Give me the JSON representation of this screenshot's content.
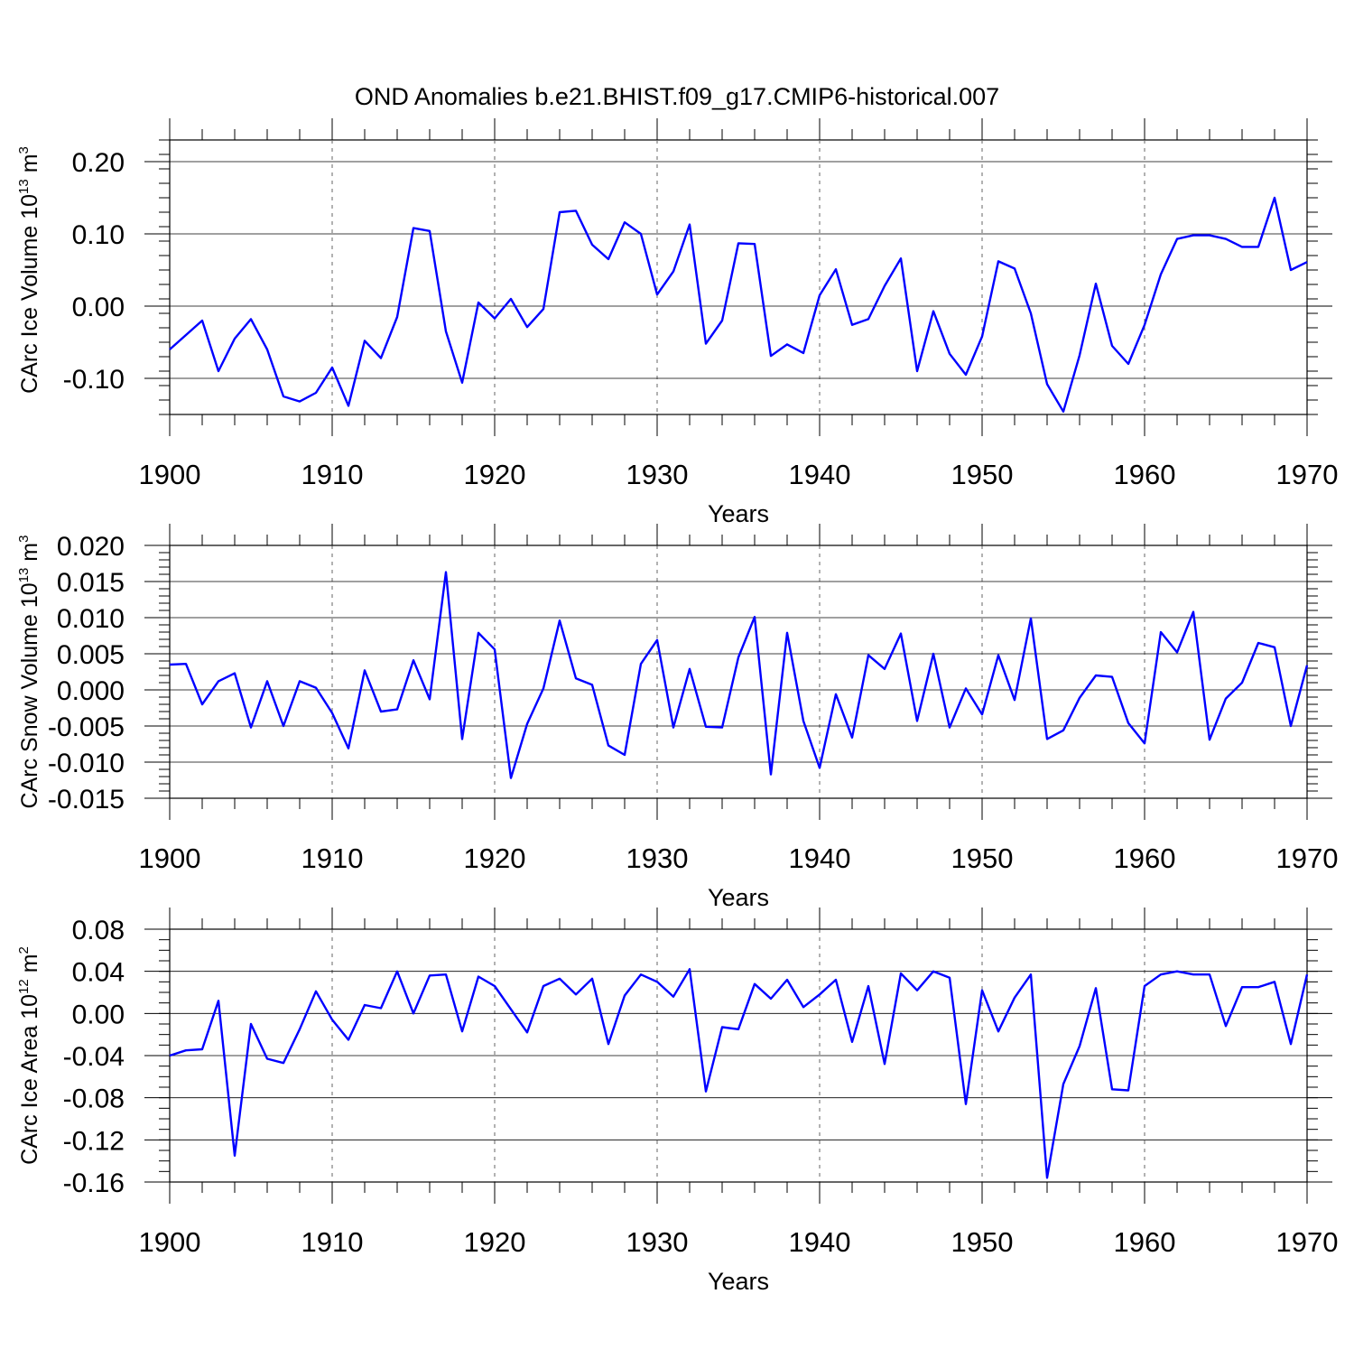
{
  "figure": {
    "title": "OND Anomalies b.e21.BHIST.f09_g17.CMIP6-historical.007",
    "line_color": "#0000ff"
  },
  "chart_data": [
    {
      "type": "line",
      "ylabel_main": "CArc Ice Volume 10",
      "ylabel_exp": "13",
      "ylabel_unit": " m",
      "ylabel_unit_exp": "3",
      "xlabel": "Years",
      "xlim": [
        1900,
        1970
      ],
      "ylim": [
        -0.15,
        0.23
      ],
      "yticks": [
        0.2,
        0.1,
        0.0,
        -0.1
      ],
      "ytick_labels": [
        "0.20",
        "0.10",
        "0.00",
        "-0.10"
      ],
      "yminor_step": 0.02,
      "xticks": [
        1900,
        1910,
        1920,
        1930,
        1940,
        1950,
        1960,
        1970
      ],
      "xtick_labels": [
        "1900",
        "1910",
        "1920",
        "1930",
        "1940",
        "1950",
        "1960",
        "1970"
      ],
      "series": [
        {
          "name": "CArc Ice Volume",
          "x_start": 1900,
          "values": [
            -0.06,
            -0.04,
            -0.02,
            -0.09,
            -0.045,
            -0.018,
            -0.06,
            -0.125,
            -0.132,
            -0.12,
            -0.085,
            -0.138,
            -0.048,
            -0.072,
            -0.015,
            0.108,
            0.104,
            -0.035,
            -0.106,
            0.005,
            -0.017,
            0.01,
            -0.029,
            -0.004,
            0.13,
            0.132,
            0.085,
            0.065,
            0.116,
            0.1,
            0.016,
            0.048,
            0.113,
            -0.052,
            -0.02,
            0.087,
            0.086,
            -0.069,
            -0.053,
            -0.065,
            0.015,
            0.051,
            -0.026,
            -0.018,
            0.028,
            0.066,
            -0.09,
            -0.007,
            -0.066,
            -0.095,
            -0.042,
            0.062,
            0.052,
            -0.01,
            -0.108,
            -0.146,
            -0.068,
            0.031,
            -0.055,
            -0.08,
            -0.026,
            0.044,
            0.093,
            0.098,
            0.098,
            0.093,
            0.082,
            0.082,
            0.15,
            0.05,
            0.061
          ]
        }
      ]
    },
    {
      "type": "line",
      "ylabel_main": "CArc Snow Volume 10",
      "ylabel_exp": "13",
      "ylabel_unit": " m",
      "ylabel_unit_exp": "3",
      "xlabel": "Years",
      "xlim": [
        1900,
        1970
      ],
      "ylim": [
        -0.015,
        0.02
      ],
      "yticks": [
        0.02,
        0.015,
        0.01,
        0.005,
        0.0,
        -0.005,
        -0.01,
        -0.015
      ],
      "ytick_labels": [
        "0.020",
        "0.015",
        "0.010",
        "0.005",
        "0.000",
        "-0.005",
        "-0.010",
        "-0.015"
      ],
      "yminor_step": 0.001,
      "xticks": [
        1900,
        1910,
        1920,
        1930,
        1940,
        1950,
        1960,
        1970
      ],
      "xtick_labels": [
        "1900",
        "1910",
        "1920",
        "1930",
        "1940",
        "1950",
        "1960",
        "1970"
      ],
      "series": [
        {
          "name": "CArc Snow Volume",
          "x_start": 1900,
          "values": [
            0.0035,
            0.0036,
            -0.002,
            0.0012,
            0.0023,
            -0.0052,
            0.0012,
            -0.005,
            0.0012,
            0.0003,
            -0.0032,
            -0.0081,
            0.0027,
            -0.003,
            -0.0027,
            0.0041,
            -0.0013,
            0.0163,
            -0.0068,
            0.0079,
            0.0056,
            -0.0122,
            -0.0047,
            0.0002,
            0.0096,
            0.0016,
            0.0007,
            -0.0077,
            -0.009,
            0.0036,
            0.0069,
            -0.0052,
            0.0029,
            -0.0051,
            -0.0052,
            0.0045,
            0.0101,
            -0.0117,
            0.0079,
            -0.0043,
            -0.0108,
            -0.0006,
            -0.0066,
            0.0048,
            0.0029,
            0.0078,
            -0.0043,
            0.005,
            -0.0052,
            0.0002,
            -0.0034,
            0.0048,
            -0.0014,
            0.0099,
            -0.0068,
            -0.0056,
            -0.0011,
            0.002,
            0.0018,
            -0.0046,
            -0.0074,
            0.008,
            0.0052,
            0.0108,
            -0.0069,
            -0.0012,
            0.001,
            0.0065,
            0.0059,
            -0.005,
            0.0034
          ]
        }
      ]
    },
    {
      "type": "line",
      "ylabel_main": "CArc Ice Area 10",
      "ylabel_exp": "12",
      "ylabel_unit": " m",
      "ylabel_unit_exp": "2",
      "xlabel": "Years",
      "xlim": [
        1900,
        1970
      ],
      "ylim": [
        -0.16,
        0.08
      ],
      "yticks": [
        0.08,
        0.04,
        0.0,
        -0.04,
        -0.08,
        -0.12,
        -0.16
      ],
      "ytick_labels": [
        "0.08",
        "0.04",
        "0.00",
        "-0.04",
        "-0.08",
        "-0.12",
        "-0.16"
      ],
      "yminor_step": 0.01,
      "xticks": [
        1900,
        1910,
        1920,
        1930,
        1940,
        1950,
        1960,
        1970
      ],
      "xtick_labels": [
        "1900",
        "1910",
        "1920",
        "1930",
        "1940",
        "1950",
        "1960",
        "1970"
      ],
      "series": [
        {
          "name": "CArc Ice Area",
          "x_start": 1900,
          "values": [
            -0.04,
            -0.035,
            -0.034,
            0.012,
            -0.135,
            -0.01,
            -0.043,
            -0.047,
            -0.015,
            0.021,
            -0.006,
            -0.025,
            0.008,
            0.005,
            0.04,
            0.0,
            0.036,
            0.037,
            -0.017,
            0.035,
            0.026,
            0.004,
            -0.018,
            0.026,
            0.033,
            0.018,
            0.033,
            -0.029,
            0.017,
            0.037,
            0.03,
            0.016,
            0.042,
            -0.074,
            -0.013,
            -0.015,
            0.028,
            0.014,
            0.032,
            0.006,
            0.018,
            0.032,
            -0.027,
            0.026,
            -0.048,
            0.038,
            0.022,
            0.04,
            0.034,
            -0.086,
            0.022,
            -0.017,
            0.015,
            0.037,
            -0.156,
            -0.067,
            -0.031,
            0.024,
            -0.072,
            -0.073,
            0.026,
            0.037,
            0.04,
            0.037,
            0.037,
            -0.012,
            0.025,
            0.025,
            0.03,
            -0.029,
            0.037
          ]
        }
      ]
    }
  ]
}
